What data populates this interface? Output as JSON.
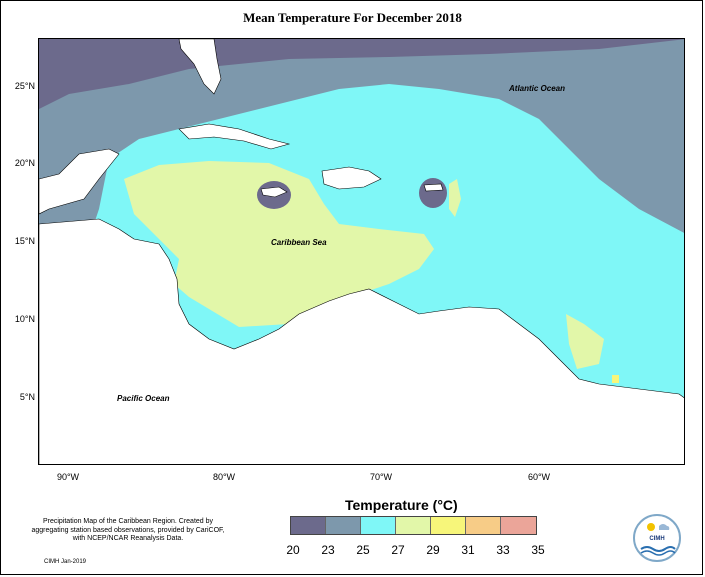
{
  "title": "Mean Temperature For December 2018",
  "map_labels": {
    "atlantic": "Atlantic Ocean",
    "caribbean": "Caribbean Sea",
    "pacific": "Pacific Ocean"
  },
  "axes": {
    "lat_labels": [
      "25°N",
      "20°N",
      "15°N",
      "10°N",
      "5°N"
    ],
    "lon_labels": [
      "90°W",
      "80°W",
      "70°W",
      "60°W"
    ]
  },
  "legend": {
    "title": "Temperature (°C)",
    "ticks": [
      "20",
      "23",
      "25",
      "27",
      "29",
      "31",
      "33",
      "35"
    ],
    "colors": [
      "#6c6a8c",
      "#7d98ac",
      "#7ff7f7",
      "#e2f7a9",
      "#f7f67a",
      "#f7cc87",
      "#eba599"
    ]
  },
  "footer": {
    "description": "Precipitation Map of the Caribbean Region. Created by aggregating station based observations, provided by CariCOF, with NCEP/NCAR Reanalysis Data.",
    "date": "CIMH Jan-2019"
  },
  "logo": {
    "text": "CIMH",
    "icon": "cimh-logo-icon"
  }
}
